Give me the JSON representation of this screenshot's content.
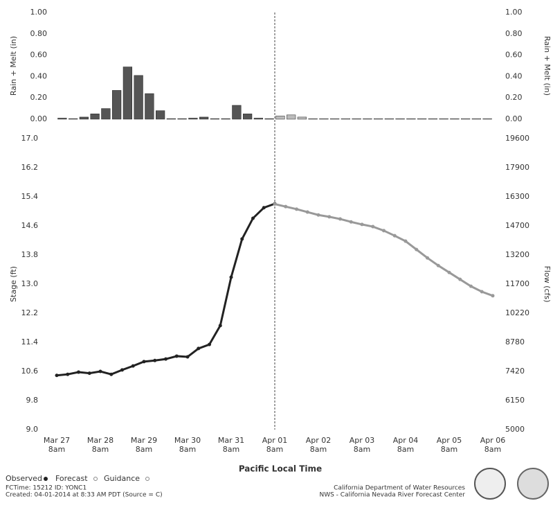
{
  "chart_data": [
    {
      "type": "bar",
      "ylabel": "Rain + Melt (in)",
      "ylim": [
        0,
        1
      ],
      "yticks": [
        {
          "value": 0,
          "label": "0.00"
        },
        {
          "value": 0.2,
          "label": "0.20"
        },
        {
          "value": 0.4,
          "label": "0.40"
        },
        {
          "value": 0.6,
          "label": "0.60"
        },
        {
          "value": 0.8,
          "label": "0.80"
        },
        {
          "value": 1,
          "label": "1.00"
        }
      ],
      "series": [
        {
          "color": "#555555",
          "values": [
            0.01,
            0.005,
            0.02,
            0.05,
            0.1,
            0.27,
            0.49,
            0.41,
            0.24,
            0.08,
            0.005,
            0.005,
            0.01,
            0.02,
            0.005,
            0.005,
            0.13,
            0.05,
            0.01,
            0.005,
            null,
            null,
            null,
            null,
            null,
            null,
            null,
            null,
            null,
            null,
            null,
            null,
            null,
            null,
            null,
            null,
            null,
            null,
            null,
            null
          ]
        },
        {
          "color": "#bbbbbb",
          "values": [
            null,
            null,
            null,
            null,
            null,
            null,
            null,
            null,
            null,
            null,
            null,
            null,
            null,
            null,
            null,
            null,
            null,
            null,
            null,
            null,
            0.03,
            0.04,
            0.02,
            0.005,
            0.005,
            0.005,
            0.005,
            0.005,
            0.005,
            0.005,
            0.005,
            0.005,
            0.005,
            0.005,
            0.005,
            0.005,
            0.005,
            0.005,
            0.005,
            0.005
          ]
        }
      ]
    },
    {
      "type": "line",
      "ylabel": "Stage (ft)",
      "y2label": "Flow (cfs)",
      "xlabel": "Pacific Local Time",
      "ylim": [
        9,
        17
      ],
      "yticks": [
        {
          "value": 9,
          "label": "9.0"
        },
        9.8,
        10.6,
        11.4,
        12.2,
        {
          "value": 13,
          "label": "13.0"
        },
        13.8,
        14.6,
        15.4,
        16.2,
        {
          "value": 17,
          "label": "17.0"
        }
      ],
      "y2lim": [
        5000,
        19600
      ],
      "y2ticks": [
        5000,
        6150,
        7420,
        8780,
        10220,
        11700,
        13200,
        14700,
        16300,
        17900,
        19600
      ],
      "xtick_labels": [
        [
          "Mar 27",
          "8am"
        ],
        [
          "Mar 28",
          "8am"
        ],
        [
          "Mar 29",
          "8am"
        ],
        [
          "Mar 30",
          "8am"
        ],
        [
          "Mar 31",
          "8am"
        ],
        [
          "Apr 01",
          "8am"
        ],
        [
          "Apr 02",
          "8am"
        ],
        [
          "Apr 03",
          "8am"
        ],
        [
          "Apr 04",
          "8am"
        ],
        [
          "Apr 05",
          "8am"
        ],
        [
          "Apr 06",
          "8am"
        ]
      ],
      "series": [
        {
          "name": "Observed",
          "color": "#222222",
          "values": [
            10.49,
            10.52,
            10.58,
            10.55,
            10.6,
            10.52,
            10.64,
            10.75,
            10.87,
            10.9,
            10.94,
            11.02,
            11.0,
            11.23,
            11.34,
            11.86,
            13.19,
            14.24,
            14.81,
            15.1,
            15.21,
            null,
            null,
            null,
            null,
            null,
            null,
            null,
            null,
            null,
            null,
            null,
            null,
            null,
            null,
            null,
            null,
            null,
            null,
            null,
            null
          ]
        },
        {
          "name": "Forecast",
          "color": "#999999",
          "values": [
            null,
            null,
            null,
            null,
            null,
            null,
            null,
            null,
            null,
            null,
            null,
            null,
            null,
            null,
            null,
            null,
            null,
            null,
            null,
            null,
            15.2,
            15.13,
            15.06,
            14.98,
            14.9,
            14.85,
            14.79,
            14.71,
            14.64,
            14.58,
            14.47,
            14.33,
            14.18,
            13.95,
            13.72,
            13.51,
            13.32,
            13.13,
            12.94,
            12.79,
            12.68
          ]
        }
      ]
    }
  ],
  "guidance_label": "Guidance",
  "footer": {
    "fctime": "FCTime: 15212   ID: YONC1",
    "created": "Created: 04-01-2014 at 8:33 AM PDT   (Source = C)",
    "agency1": "California Department of Water Resources",
    "agency2": "NWS - California Nevada River Forecast Center"
  }
}
